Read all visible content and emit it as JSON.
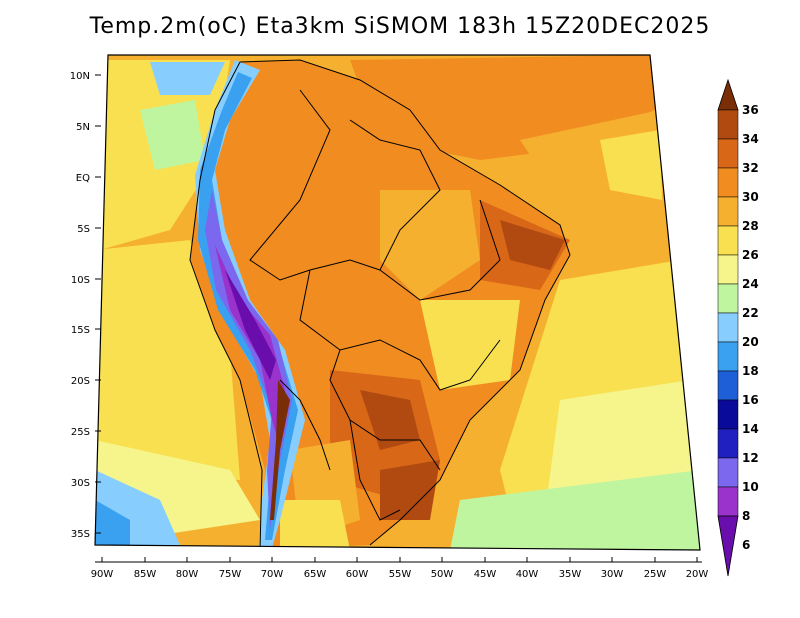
{
  "title": "Temp.2m(oC) Eta3km SiSMOM 183h 15Z20DEC2025",
  "lat_labels": [
    "10N",
    "5N",
    "EQ",
    "5S",
    "10S",
    "15S",
    "20S",
    "25S",
    "30S",
    "35S"
  ],
  "lon_labels": [
    "90W",
    "85W",
    "80W",
    "75W",
    "70W",
    "65W",
    "60W",
    "55W",
    "50W",
    "45W",
    "40W",
    "35W",
    "30W",
    "25W",
    "20W"
  ],
  "colorbar": {
    "labels": [
      "6",
      "8",
      "10",
      "12",
      "14",
      "16",
      "18",
      "20",
      "22",
      "24",
      "26",
      "28",
      "30",
      "32",
      "34",
      "36"
    ],
    "colors": [
      "#6a0dad",
      "#9933cc",
      "#7b68ee",
      "#2020c0",
      "#0a0a9a",
      "#1e5fd8",
      "#3aa0f0",
      "#87ceff",
      "#c0f5a0",
      "#f5f58c",
      "#f8e050",
      "#f5b030",
      "#f08c20",
      "#d86818",
      "#b04a10",
      "#7a2e08"
    ]
  }
}
